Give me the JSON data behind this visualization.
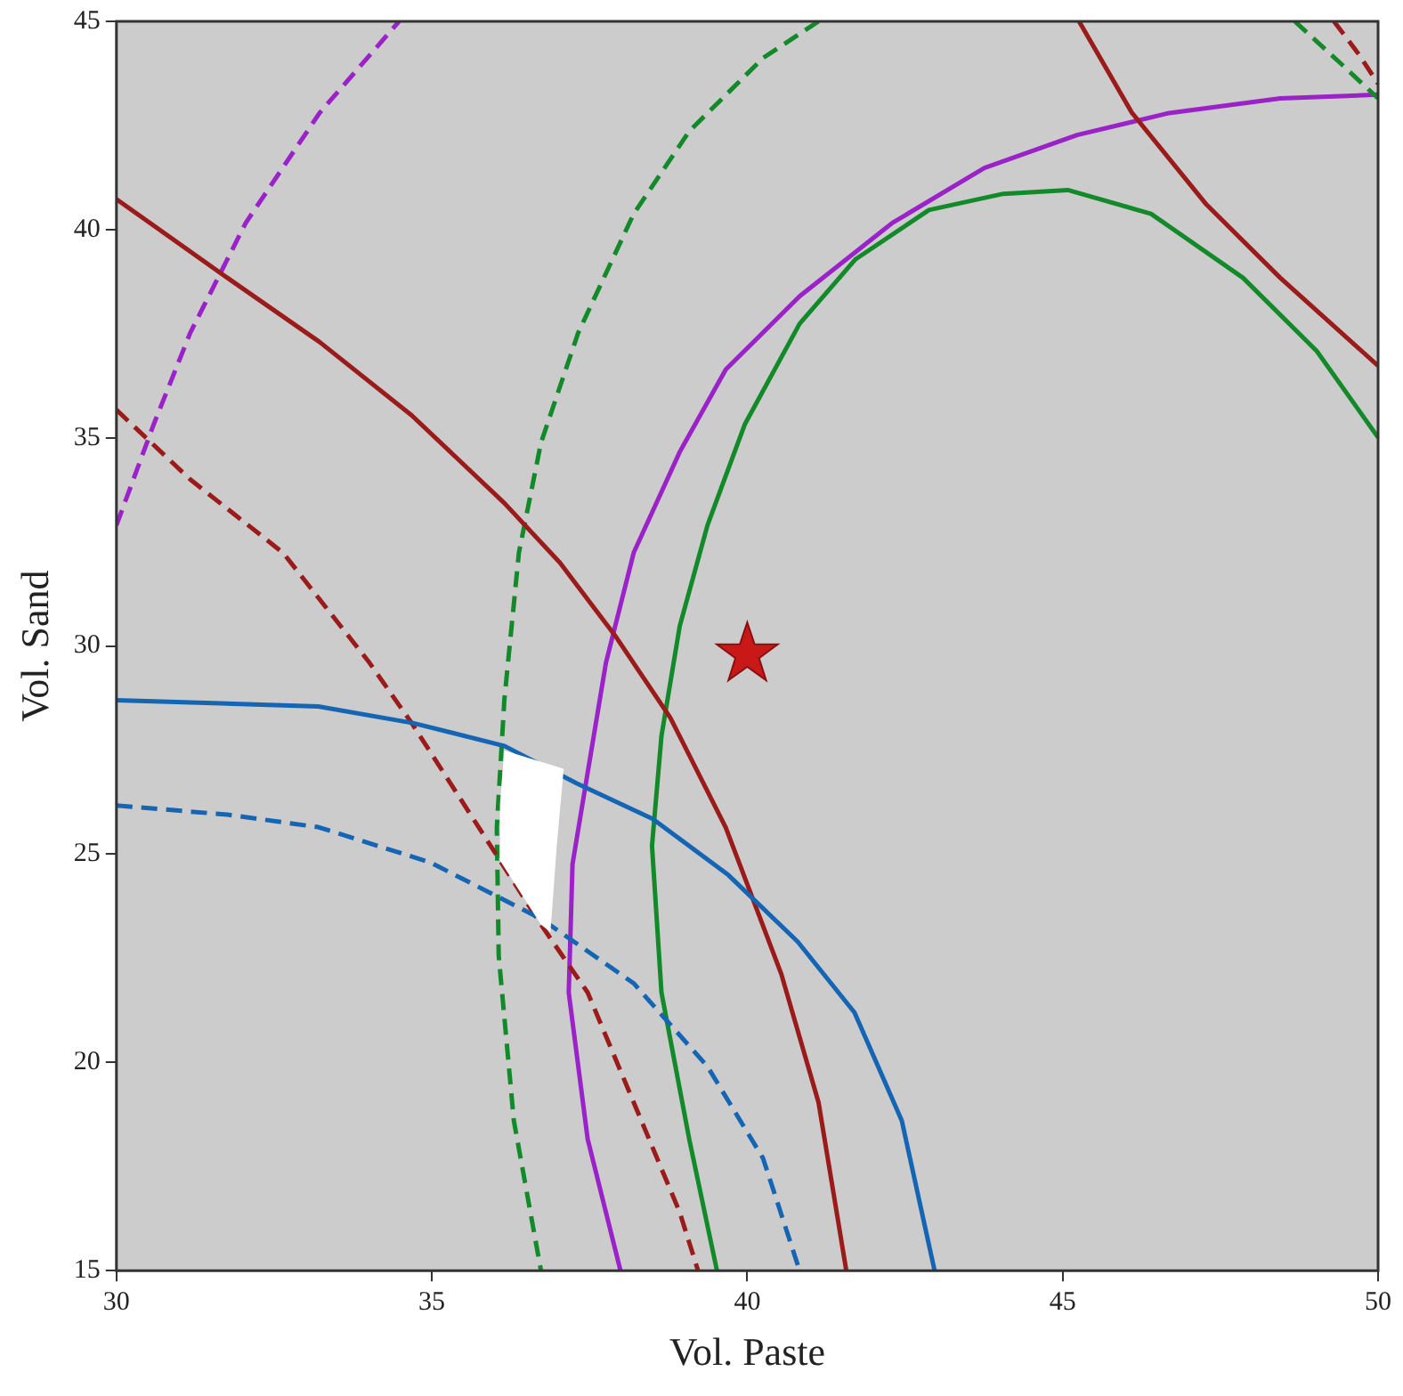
{
  "chart_data": {
    "type": "line",
    "xlabel": "Vol. Paste",
    "ylabel": "Vol. Sand",
    "xlim": [
      30,
      50
    ],
    "xticks": [
      30,
      35,
      40,
      45,
      50
    ],
    "ylim": [
      15,
      45
    ],
    "yticks": [
      15,
      20,
      25,
      30,
      35,
      40,
      45
    ],
    "grid": false,
    "legend": false,
    "marker": "none",
    "series": [
      {
        "type": "area",
        "color": "#ffffff",
        "x": [
          36.15,
          37.09,
          36.98,
          36.88,
          36.73,
          36.06,
          36.08,
          36.15
        ],
        "values": [
          27.49,
          27.05,
          25.2,
          23.13,
          23.31,
          24.9,
          26.2,
          27.49
        ]
      },
      {
        "color": "#1565b5",
        "line_style": "solid",
        "x": [
          30,
          33.2,
          34.7,
          36.15,
          37.3,
          38.5,
          39.7,
          40.8,
          41.7,
          42.45,
          42.97
        ],
        "values": [
          28.7,
          28.55,
          28.15,
          27.6,
          26.7,
          25.85,
          24.5,
          22.9,
          21.2,
          18.6,
          15
        ]
      },
      {
        "color": "#1565b5",
        "line_style": "dashed",
        "x": [
          30,
          31.76,
          33.2,
          34.98,
          36.73,
          38.2,
          39.37,
          40.25,
          40.83
        ],
        "values": [
          26.17,
          25.95,
          25.65,
          24.8,
          23.45,
          21.9,
          19.9,
          17.7,
          15
        ]
      },
      {
        "color": "#9b1b1b",
        "line_style": "solid",
        "x": [
          30,
          31.76,
          33.22,
          34.68,
          36.15,
          37.03,
          37.9,
          38.78,
          39.66,
          40.54,
          41.13,
          41.57
        ],
        "values": [
          40.73,
          38.84,
          37.3,
          35.54,
          33.43,
          32.0,
          30.26,
          28.28,
          25.64,
          22.12,
          19.04,
          15
        ]
      },
      {
        "color": "#9b1b1b",
        "line_style": "solid",
        "x": [
          45.26,
          46.1,
          47.28,
          48.45,
          50
        ],
        "values": [
          45,
          42.8,
          40.6,
          38.84,
          36.73
        ]
      },
      {
        "color": "#9b1b1b",
        "line_style": "dashed",
        "x": [
          30,
          31.17,
          32.64,
          34.01,
          34.68,
          36.06,
          36.73,
          37.47,
          38.2,
          38.93,
          39.22
        ],
        "values": [
          35.67,
          34.0,
          32.24,
          29.6,
          28.15,
          24.9,
          23.31,
          21.68,
          19.04,
          16.4,
          15
        ]
      },
      {
        "color": "#9b1b1b",
        "line_style": "dashed",
        "x": [
          49.3,
          49.7,
          50
        ],
        "values": [
          45,
          44.2,
          43.5
        ]
      },
      {
        "color": "#138a2a",
        "line_style": "dashed",
        "x": [
          48.68,
          49.4,
          50
        ],
        "values": [
          45,
          44.0,
          43.15
        ]
      },
      {
        "color": "#138a2a",
        "line_style": "dashed",
        "x": [
          41.13,
          40.25,
          39.08,
          38.2,
          37.32,
          36.73,
          36.38,
          36.15,
          36.03,
          36.06,
          36.3,
          36.73
        ],
        "values": [
          45,
          44.12,
          42.36,
          40.38,
          37.52,
          34.88,
          32.24,
          28.72,
          25.64,
          22.56,
          18.6,
          15
        ]
      },
      {
        "color": "#138a2a",
        "line_style": "solid",
        "x": [
          39.52,
          39.08,
          38.64,
          38.49,
          38.64,
          38.93,
          39.37,
          39.96,
          40.83,
          41.71,
          42.88,
          44.06,
          45.08,
          46.4,
          47.86,
          49.03,
          50
        ],
        "values": [
          15,
          18.16,
          21.68,
          25.2,
          27.84,
          30.48,
          32.9,
          35.32,
          37.74,
          39.28,
          40.47,
          40.86,
          40.95,
          40.38,
          38.84,
          37.08,
          35.01
        ]
      },
      {
        "color": "#9a22c8",
        "line_style": "solid",
        "x": [
          37.99,
          37.47,
          37.17,
          37.23,
          37.47,
          37.76,
          38.2,
          38.93,
          39.66,
          40.83,
          42.3,
          43.76,
          45.23,
          46.69,
          48.45,
          50
        ],
        "values": [
          15,
          18.16,
          21.68,
          24.76,
          26.96,
          29.6,
          32.24,
          34.66,
          36.64,
          38.4,
          40.16,
          41.48,
          42.27,
          42.8,
          43.15,
          43.24
        ]
      },
      {
        "color": "#9a22c8",
        "line_style": "dashed",
        "x": [
          30,
          30.59,
          31.17,
          32.05,
          33.22,
          34.48
        ],
        "values": [
          32.9,
          35.32,
          37.52,
          40.16,
          42.8,
          45
        ]
      },
      {
        "type": "scatter",
        "marker": "star",
        "color": "#c81818",
        "x": [
          40.0
        ],
        "values": [
          29.8
        ]
      }
    ]
  }
}
